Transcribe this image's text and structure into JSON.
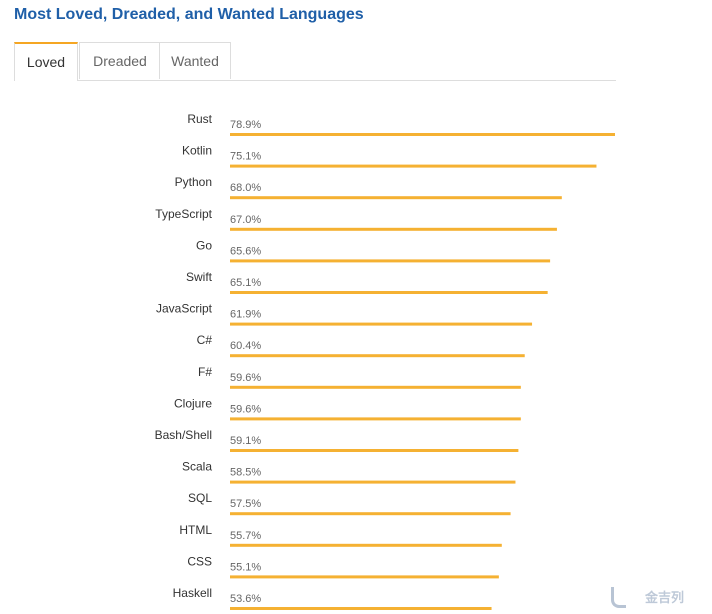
{
  "title": "Most Loved, Dreaded, and Wanted Languages",
  "tabs": [
    {
      "label": "Loved",
      "active": true
    },
    {
      "label": "Dreaded",
      "active": false
    },
    {
      "label": "Wanted",
      "active": false
    }
  ],
  "colors": {
    "bar": "#f5b132",
    "title": "#1f5fa8"
  },
  "watermark": "金吉列",
  "chart_data": {
    "type": "bar",
    "orientation": "horizontal",
    "categories": [
      "Rust",
      "Kotlin",
      "Python",
      "TypeScript",
      "Go",
      "Swift",
      "JavaScript",
      "C#",
      "F#",
      "Clojure",
      "Bash/Shell",
      "Scala",
      "SQL",
      "HTML",
      "CSS",
      "Haskell"
    ],
    "values": [
      78.9,
      75.1,
      68.0,
      67.0,
      65.6,
      65.1,
      61.9,
      60.4,
      59.6,
      59.6,
      59.1,
      58.5,
      57.5,
      55.7,
      55.1,
      53.6
    ],
    "value_labels": [
      "78.9%",
      "75.1%",
      "68.0%",
      "67.0%",
      "65.6%",
      "65.1%",
      "61.9%",
      "60.4%",
      "59.6%",
      "59.6%",
      "59.1%",
      "58.5%",
      "57.5%",
      "55.7%",
      "55.1%",
      "53.6%"
    ],
    "xlim": [
      0,
      78.9
    ],
    "grid": false,
    "legend": "none"
  }
}
